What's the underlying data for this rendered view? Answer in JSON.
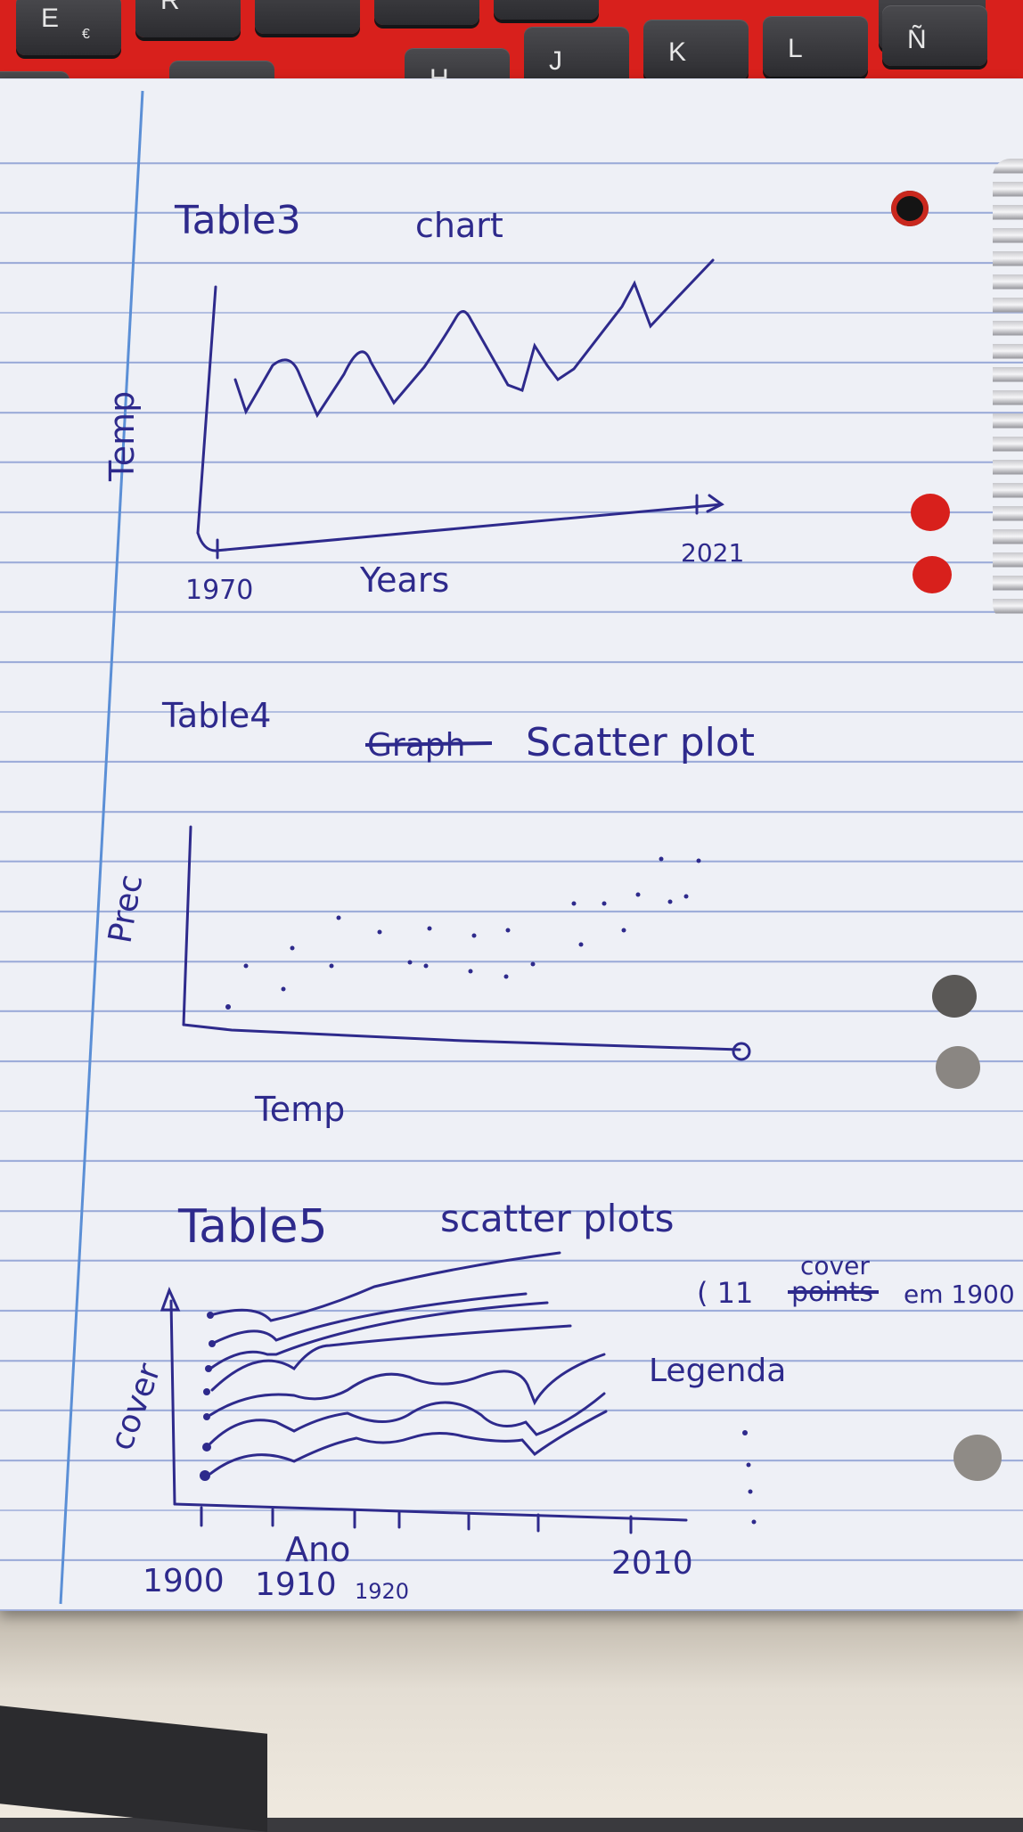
{
  "keyboard": {
    "keys_top": [
      {
        "label": "E",
        "sub": "€"
      },
      {
        "label": "R",
        "sub": ""
      },
      {
        "label": "",
        "sub": ""
      },
      {
        "label": "",
        "sub": ""
      },
      {
        "label": "",
        "sub": ""
      },
      {
        "label": "",
        "sub": ""
      }
    ],
    "keys_bottom": [
      {
        "label": "",
        "sub": ""
      },
      {
        "label": "",
        "sub": ""
      },
      {
        "label": "H",
        "sub": ""
      },
      {
        "label": "J",
        "sub": ""
      },
      {
        "label": "K",
        "sub": ""
      },
      {
        "label": "L",
        "sub": ""
      },
      {
        "label": "Ñ",
        "sub": ""
      }
    ]
  },
  "notes": {
    "table3": {
      "label": "Table3",
      "title": "chart",
      "y_label": "Temp",
      "x_label": "Years",
      "x_start": "1970",
      "x_end": "2021"
    },
    "table4": {
      "label": "Table4",
      "struck": "Graph",
      "title": "Scatter plot",
      "y_label": "Prec",
      "x_label": "Temp"
    },
    "table5": {
      "label": "Table5",
      "title": "scatter plots",
      "y_label": "cover",
      "x_label": "Ano",
      "ticks": [
        "1900",
        "1910",
        "1920",
        "2010"
      ],
      "note_prefix": "( 11",
      "note_struck": "points",
      "note_insert": "cover",
      "note_suffix": "em 1900",
      "legend_label": "Legenda"
    }
  },
  "colors": {
    "ink": "#2e2a8c",
    "paper": "#eef0f6",
    "rule": "#9aaad8",
    "margin": "#5b8fd6",
    "keyboard": "#d8201c"
  }
}
